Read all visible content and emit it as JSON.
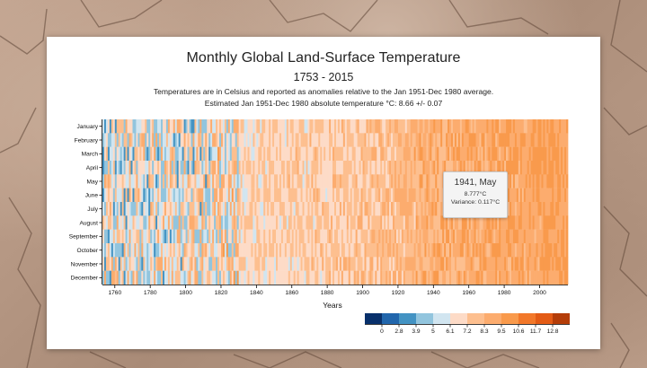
{
  "colors": {
    "scale": [
      "#08306b",
      "#2166ac",
      "#4393c3",
      "#92c5de",
      "#d1e5f0",
      "#fddbc7",
      "#fdbf8f",
      "#fcac6e",
      "#f99a4c",
      "#f2782a",
      "#e35b15",
      "#b43d09"
    ],
    "card": "#ffffff"
  },
  "tooltip": {
    "title": "1941, May",
    "value": "8.777°C",
    "variance": "Variance: 0.117°C"
  },
  "chart_data": {
    "type": "heatmap",
    "title": "Monthly Global Land-Surface Temperature",
    "subtitle": "1753 - 2015",
    "description": "Temperatures are in Celsius and reported as anomalies relative to the Jan 1951-Dec 1980 average.",
    "description2": "Estimated Jan 1951-Dec 1980 absolute temperature °C: 8.66 +/- 0.07",
    "xlabel": "Years",
    "ylabel": "",
    "x_range": [
      1753,
      2015
    ],
    "x_ticks": [
      "1760",
      "1780",
      "1800",
      "1820",
      "1840",
      "1860",
      "1880",
      "1900",
      "1920",
      "1940",
      "1960",
      "1980",
      "2000"
    ],
    "y_categories": [
      "January",
      "February",
      "March",
      "April",
      "May",
      "June",
      "July",
      "August",
      "September",
      "October",
      "November",
      "December"
    ],
    "legend_thresholds": [
      "0",
      "2.8",
      "3.9",
      "5",
      "6.1",
      "7.2",
      "8.3",
      "9.5",
      "10.6",
      "11.7",
      "12.8"
    ],
    "color_bins": 12,
    "base_temperature": 8.66,
    "highlight": {
      "year": 1941,
      "month": "May",
      "temperature": 8.777,
      "variance": 0.117
    }
  }
}
